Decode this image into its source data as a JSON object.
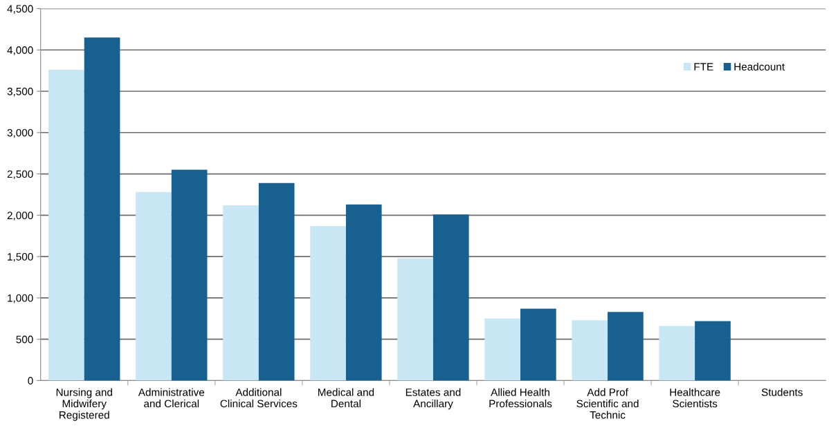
{
  "chart_data": {
    "type": "bar",
    "categories": [
      "Nursing and\nMidwifery\nRegistered",
      "Administrative\nand Clerical",
      "Additional\nClinical Services",
      "Medical and\nDental",
      "Estates and\nAncillary",
      "Allied Health\nProfessionals",
      "Add Prof\nScientific and\nTechnic",
      "Healthcare\nScientists",
      "Students"
    ],
    "series": [
      {
        "name": "FTE",
        "color": "#c9e6f4",
        "values": [
          3760,
          2280,
          2120,
          1870,
          1480,
          750,
          730,
          660,
          0
        ]
      },
      {
        "name": "Headcount",
        "color": "#17608f",
        "values": [
          4150,
          2550,
          2390,
          2130,
          2010,
          870,
          830,
          720,
          null
        ]
      }
    ],
    "ylim": [
      0,
      4500
    ],
    "yticks": [
      {
        "value": 0,
        "label": "0"
      },
      {
        "value": 500,
        "label": "500"
      },
      {
        "value": 1000,
        "label": "1,000"
      },
      {
        "value": 1500,
        "label": "1,500"
      },
      {
        "value": 2000,
        "label": "2,000"
      },
      {
        "value": 2500,
        "label": "2,500"
      },
      {
        "value": 3000,
        "label": "3,000"
      },
      {
        "value": 3500,
        "label": "3,500"
      },
      {
        "value": 4000,
        "label": "4,000"
      },
      {
        "value": 4500,
        "label": "4,500"
      }
    ],
    "grid": "y",
    "legend": "top right"
  }
}
